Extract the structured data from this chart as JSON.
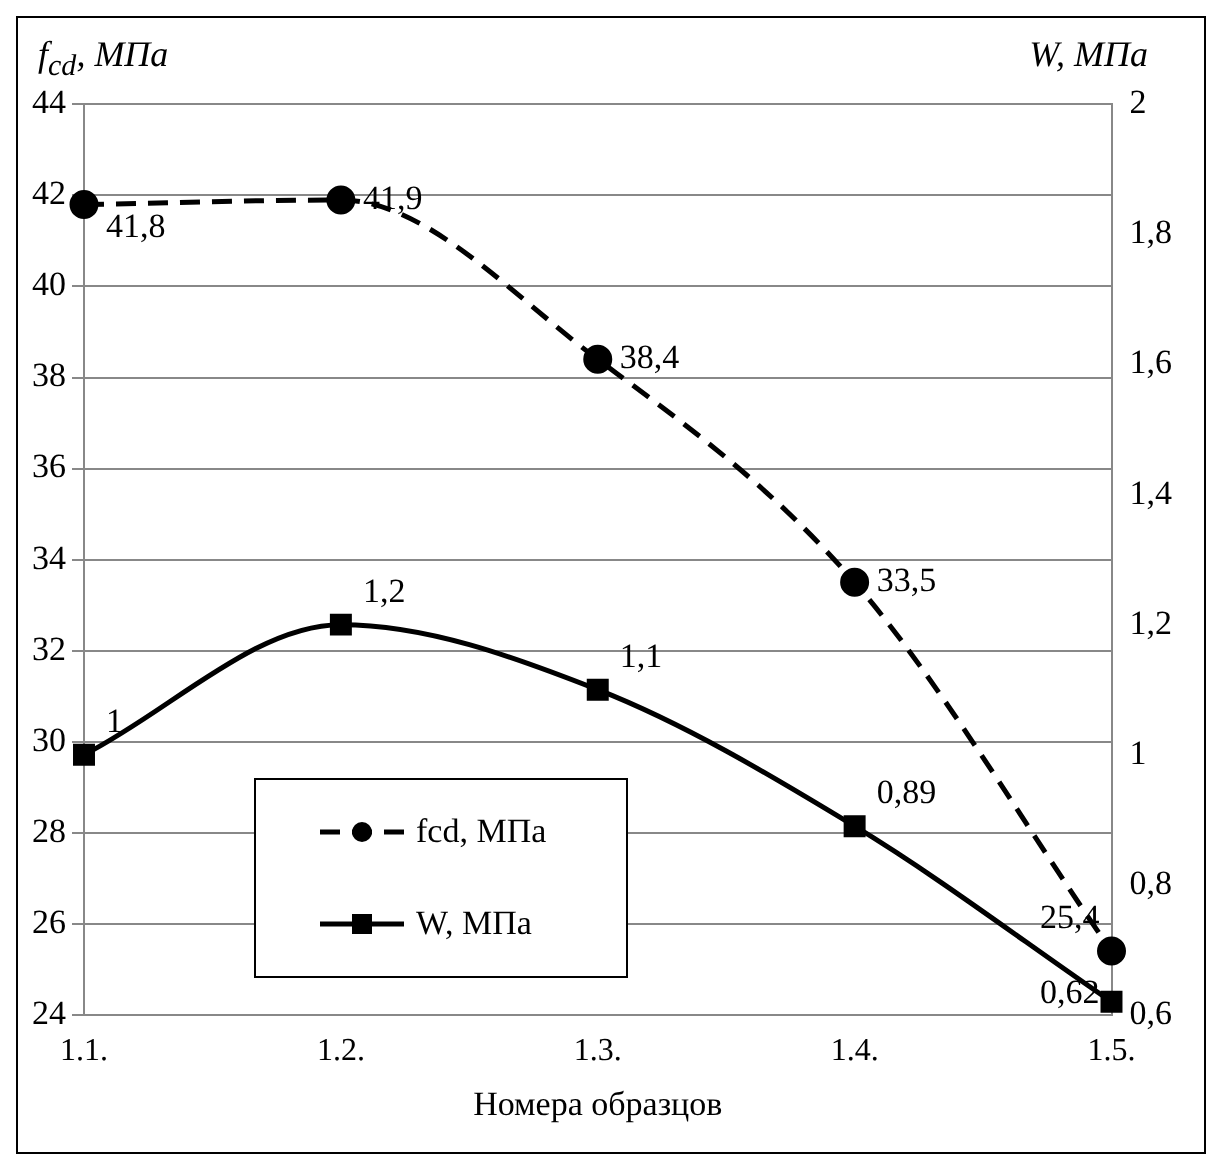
{
  "chart_data": {
    "type": "line",
    "ylabel": "f$_{cd}$, МПа",
    "y2label": "W, МПа",
    "xlabel": "Номера образцов",
    "categories": [
      "1.1.",
      "1.2.",
      "1.3.",
      "1.4.",
      "1.5."
    ],
    "series": [
      {
        "name": "fcd, МПа",
        "color": "#000000",
        "values": [
          41.8,
          41.9,
          38.4,
          33.5,
          25.4
        ],
        "value_labels": [
          "41,8",
          "41,9",
          "38,4",
          "33,5",
          "25,4"
        ],
        "marker": "circle",
        "line_style": "dashed"
      },
      {
        "name": "W, МПа",
        "color": "#000000",
        "values": [
          1,
          1.2,
          1.1,
          0.89,
          0.62
        ],
        "value_labels": [
          "1",
          "1,2",
          "1,1",
          "0,89",
          "0,62"
        ],
        "marker": "square",
        "line_style": "solid",
        "axis": "y2"
      }
    ],
    "ylim": [
      24,
      44
    ],
    "yticks": [
      24,
      26,
      28,
      30,
      32,
      34,
      36,
      38,
      40,
      42,
      44
    ],
    "y2lim": [
      0.6,
      2
    ],
    "y2ticks": [
      {
        "value": 0.6,
        "label": "0,6"
      },
      {
        "value": 0.8,
        "label": "0,8"
      },
      {
        "value": 1,
        "label": "1"
      },
      {
        "value": 1.2,
        "label": "1,2"
      },
      {
        "value": 1.4,
        "label": "1,4"
      },
      {
        "value": 1.6,
        "label": "1,6"
      },
      {
        "value": 1.8,
        "label": "1,8"
      },
      {
        "value": 2,
        "label": "2"
      }
    ],
    "grid": "y",
    "legend": "bottom left"
  }
}
